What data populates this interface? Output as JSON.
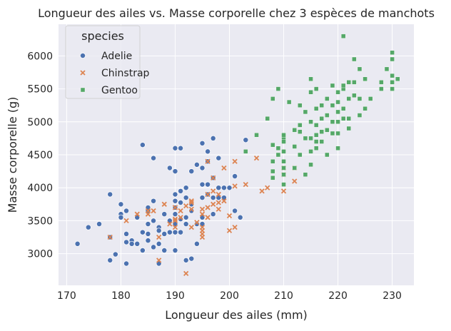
{
  "chart_data": {
    "type": "scatter",
    "title": "Longueur des ailes vs. Masse corporelle chez 3 espèces de manchots",
    "xlabel": "Longueur des ailes (mm)",
    "ylabel": "Masse corporelle (g)",
    "xlim": [
      168.5,
      234.0
    ],
    "ylim": [
      2520,
      6480
    ],
    "xticks": [
      170,
      180,
      190,
      200,
      210,
      220,
      230
    ],
    "yticks": [
      3000,
      3500,
      4000,
      4500,
      5000,
      5500,
      6000
    ],
    "grid": true,
    "legend": {
      "title": "species",
      "placement": "top-left"
    },
    "series": [
      {
        "name": "Adelie",
        "color": "#4c72b0",
        "marker": "circle",
        "points": [
          [
            172,
            3150
          ],
          [
            174,
            3400
          ],
          [
            176,
            3450
          ],
          [
            178,
            3900
          ],
          [
            178,
            3250
          ],
          [
            178,
            2900
          ],
          [
            179,
            2990
          ],
          [
            180,
            3600
          ],
          [
            180,
            3750
          ],
          [
            180,
            3550
          ],
          [
            181,
            3650
          ],
          [
            181,
            3300
          ],
          [
            181,
            3175
          ],
          [
            181,
            2850
          ],
          [
            182,
            3200
          ],
          [
            182,
            3150
          ],
          [
            183,
            3550
          ],
          [
            183,
            3150
          ],
          [
            184,
            3050
          ],
          [
            184,
            4650
          ],
          [
            184,
            3325
          ],
          [
            185,
            3650
          ],
          [
            185,
            3700
          ],
          [
            185,
            3450
          ],
          [
            185,
            3300
          ],
          [
            185,
            3200
          ],
          [
            186,
            4450
          ],
          [
            186,
            3800
          ],
          [
            186,
            3500
          ],
          [
            186,
            3100
          ],
          [
            187,
            3400
          ],
          [
            187,
            3350
          ],
          [
            187,
            2850
          ],
          [
            187,
            3150
          ],
          [
            188,
            3300
          ],
          [
            188,
            3050
          ],
          [
            188,
            3600
          ],
          [
            189,
            4300
          ],
          [
            189,
            3500
          ],
          [
            189,
            3325
          ],
          [
            190,
            4600
          ],
          [
            190,
            4250
          ],
          [
            190,
            3900
          ],
          [
            190,
            3800
          ],
          [
            190,
            3700
          ],
          [
            190,
            3600
          ],
          [
            190,
            3450
          ],
          [
            190,
            3325
          ],
          [
            190,
            3050
          ],
          [
            191,
            4600
          ],
          [
            191,
            3950
          ],
          [
            191,
            3775
          ],
          [
            191,
            3525
          ],
          [
            191,
            3325
          ],
          [
            192,
            4000
          ],
          [
            192,
            3850
          ],
          [
            192,
            3550
          ],
          [
            192,
            3450
          ],
          [
            192,
            2900
          ],
          [
            193,
            4250
          ],
          [
            193,
            3750
          ],
          [
            193,
            3650
          ],
          [
            193,
            2925
          ],
          [
            194,
            4350
          ],
          [
            194,
            3450
          ],
          [
            194,
            3150
          ],
          [
            195,
            4675
          ],
          [
            195,
            4300
          ],
          [
            195,
            4050
          ],
          [
            195,
            3850
          ],
          [
            195,
            3550
          ],
          [
            195,
            3450
          ],
          [
            196,
            4550
          ],
          [
            196,
            4400
          ],
          [
            196,
            4050
          ],
          [
            196,
            3900
          ],
          [
            197,
            4750
          ],
          [
            197,
            4150
          ],
          [
            197,
            3850
          ],
          [
            197,
            3600
          ],
          [
            198,
            4450
          ],
          [
            198,
            4000
          ],
          [
            198,
            3850
          ],
          [
            199,
            4000
          ],
          [
            199,
            3850
          ],
          [
            200,
            4000
          ],
          [
            201,
            4175
          ],
          [
            201,
            3650
          ],
          [
            202,
            3550
          ],
          [
            203,
            4725
          ]
        ]
      },
      {
        "name": "Chinstrap",
        "color": "#dd8452",
        "marker": "x",
        "points": [
          [
            178,
            3250
          ],
          [
            181,
            3500
          ],
          [
            183,
            3600
          ],
          [
            185,
            3600
          ],
          [
            185,
            3650
          ],
          [
            186,
            3650
          ],
          [
            187,
            3250
          ],
          [
            187,
            2900
          ],
          [
            188,
            3750
          ],
          [
            189,
            3450
          ],
          [
            190,
            3400
          ],
          [
            190,
            3525
          ],
          [
            190,
            3700
          ],
          [
            190,
            3500
          ],
          [
            191,
            3550
          ],
          [
            191,
            3650
          ],
          [
            192,
            2700
          ],
          [
            192,
            3725
          ],
          [
            193,
            3675
          ],
          [
            193,
            3775
          ],
          [
            193,
            3800
          ],
          [
            193,
            3400
          ],
          [
            194,
            3475
          ],
          [
            195,
            3300
          ],
          [
            195,
            3250
          ],
          [
            195,
            3350
          ],
          [
            195,
            3400
          ],
          [
            195,
            3600
          ],
          [
            195,
            3675
          ],
          [
            196,
            3900
          ],
          [
            196,
            4400
          ],
          [
            196,
            3550
          ],
          [
            196,
            3700
          ],
          [
            197,
            3750
          ],
          [
            197,
            3950
          ],
          [
            197,
            4150
          ],
          [
            198,
            3675
          ],
          [
            198,
            3775
          ],
          [
            198,
            3900
          ],
          [
            199,
            3800
          ],
          [
            199,
            4300
          ],
          [
            200,
            3575
          ],
          [
            200,
            3350
          ],
          [
            201,
            4400
          ],
          [
            201,
            4025
          ],
          [
            201,
            3400
          ],
          [
            203,
            4050
          ],
          [
            205,
            4450
          ],
          [
            206,
            3950
          ],
          [
            207,
            4000
          ],
          [
            210,
            4300
          ],
          [
            210,
            4200
          ],
          [
            210,
            3950
          ],
          [
            212,
            4100
          ],
          [
            212,
            4300
          ]
        ]
      },
      {
        "name": "Gentoo",
        "color": "#55a868",
        "marker": "square",
        "points": [
          [
            203,
            4550
          ],
          [
            205,
            4800
          ],
          [
            207,
            5050
          ],
          [
            208,
            5350
          ],
          [
            208,
            4650
          ],
          [
            208,
            4400
          ],
          [
            208,
            4250
          ],
          [
            208,
            4150
          ],
          [
            209,
            4600
          ],
          [
            209,
            4500
          ],
          [
            209,
            5500
          ],
          [
            210,
            4750
          ],
          [
            210,
            4800
          ],
          [
            210,
            4700
          ],
          [
            210,
            4550
          ],
          [
            210,
            4400
          ],
          [
            210,
            4300
          ],
          [
            210,
            4200
          ],
          [
            210,
            4050
          ],
          [
            211,
            5300
          ],
          [
            212,
            4875
          ],
          [
            212,
            4625
          ],
          [
            212,
            4300
          ],
          [
            213,
            5250
          ],
          [
            213,
            4850
          ],
          [
            213,
            4500
          ],
          [
            214,
            5150
          ],
          [
            214,
            4750
          ],
          [
            214,
            4200
          ],
          [
            215,
            5650
          ],
          [
            215,
            5450
          ],
          [
            215,
            5000
          ],
          [
            215,
            4750
          ],
          [
            215,
            4550
          ],
          [
            215,
            4350
          ],
          [
            216,
            5500
          ],
          [
            216,
            5200
          ],
          [
            216,
            4950
          ],
          [
            216,
            4800
          ],
          [
            216,
            4600
          ],
          [
            217,
            5250
          ],
          [
            217,
            5050
          ],
          [
            217,
            4850
          ],
          [
            217,
            4700
          ],
          [
            218,
            5350
          ],
          [
            218,
            5100
          ],
          [
            218,
            4875
          ],
          [
            218,
            4500
          ],
          [
            219,
            5250
          ],
          [
            219,
            5000
          ],
          [
            219,
            4825
          ],
          [
            220,
            5450
          ],
          [
            220,
            5300
          ],
          [
            220,
            5150
          ],
          [
            220,
            5000
          ],
          [
            220,
            4825
          ],
          [
            220,
            4600
          ],
          [
            221,
            6300
          ],
          [
            221,
            5500
          ],
          [
            221,
            5200
          ],
          [
            221,
            5050
          ],
          [
            222,
            5600
          ],
          [
            222,
            5350
          ],
          [
            222,
            5050
          ],
          [
            222,
            4900
          ],
          [
            223,
            5950
          ],
          [
            223,
            5600
          ],
          [
            223,
            5400
          ],
          [
            224,
            5800
          ],
          [
            224,
            5350
          ],
          [
            224,
            5100
          ],
          [
            225,
            5650
          ],
          [
            225,
            5200
          ],
          [
            226,
            5350
          ],
          [
            228,
            5600
          ],
          [
            228,
            5500
          ],
          [
            229,
            5800
          ],
          [
            230,
            5950
          ],
          [
            230,
            5600
          ],
          [
            230,
            5500
          ],
          [
            230,
            5700
          ],
          [
            231,
            5650
          ],
          [
            230,
            6050
          ],
          [
            221,
            5550
          ],
          [
            220,
            5000
          ],
          [
            216,
            4700
          ],
          [
            213,
            4950
          ],
          [
            219,
            5550
          ],
          [
            226,
            5350
          ]
        ]
      }
    ]
  }
}
